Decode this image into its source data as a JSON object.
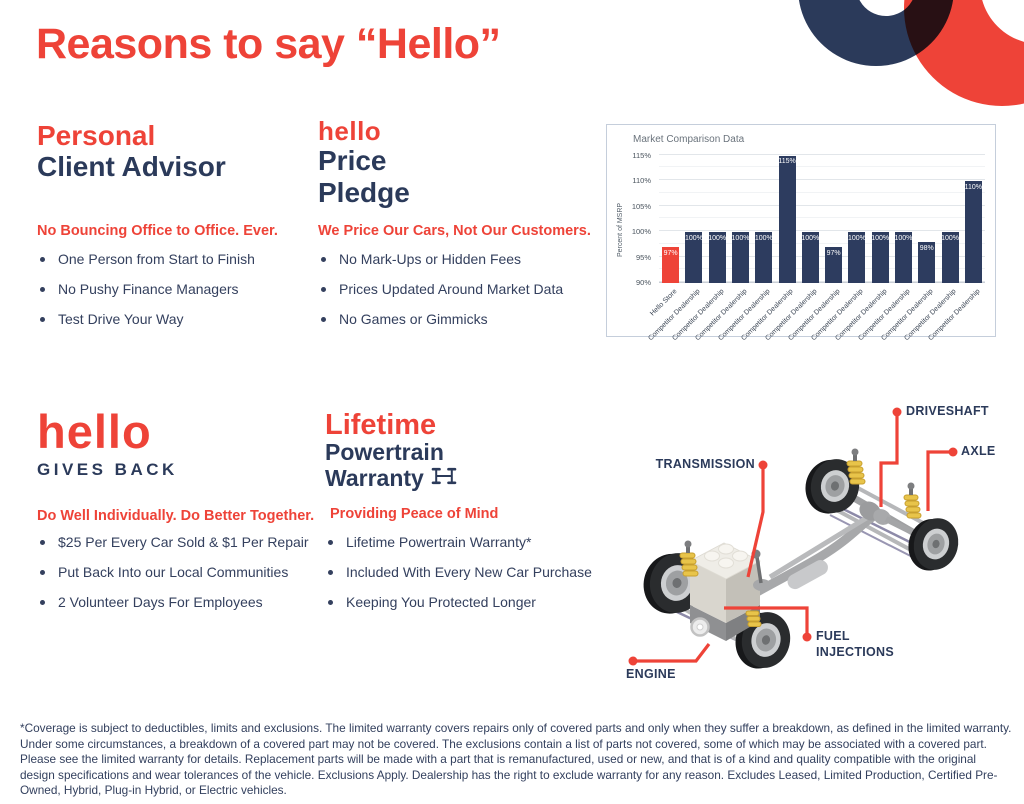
{
  "colors": {
    "accent_red": "#EE4338",
    "navy": "#2B3A5A",
    "bar_navy": "#2D3C5F",
    "grid_major": "#E2E6EA",
    "chart_border": "#C5CEDB"
  },
  "header": {
    "title": "Reasons to say “Hello”"
  },
  "sections": {
    "advisor": {
      "title_accent": "Personal",
      "title_main": "Client Advisor",
      "tagline": "No Bouncing Office to Office. Ever.",
      "bullets": [
        "One Person from Start to Finish",
        "No Pushy Finance Managers",
        "Test Drive Your Way"
      ]
    },
    "price_pledge": {
      "logo": "hello",
      "title_line1": "Price",
      "title_line2": "Pledge",
      "tagline": "We Price Our Cars, Not Our Customers.",
      "bullets": [
        "No Mark-Ups or Hidden Fees",
        "Prices Updated Around Market Data",
        "No Games or Gimmicks"
      ]
    },
    "gives_back": {
      "logo": "hello",
      "subtitle": "GIVES BACK",
      "tagline": "Do Well Individually. Do Better Together.",
      "bullets": [
        "$25 Per Every Car Sold & $1 Per Repair",
        "Put Back Into our Local Communities",
        "2 Volunteer Days For Employees"
      ]
    },
    "warranty": {
      "title_accent": "Lifetime",
      "title_line1": "Powertrain",
      "title_line2": "Warranty",
      "tagline": "Providing Peace of Mind",
      "bullets": [
        "Lifetime Powertrain Warranty*",
        "Included With Every New Car Purchase",
        "Keeping You Protected Longer"
      ]
    }
  },
  "chart_data": {
    "type": "bar",
    "title": "Market Comparison Data",
    "xlabel": "",
    "ylabel": "Percent of MSRP",
    "ylim": [
      90,
      116.5
    ],
    "yticks": [
      90,
      95,
      100,
      105,
      110,
      115
    ],
    "grid": true,
    "legend": false,
    "categories": [
      "Hello Store",
      "Competitor Dealership",
      "Competitor Dealership",
      "Competitor Dealership",
      "Competitor Dealership",
      "Competitor Dealership",
      "Competitor Dealership",
      "Competitor Dealership",
      "Competitor Dealership",
      "Competitor Dealership",
      "Competitor Dealership",
      "Competitor Dealership",
      "Competitor Dealership",
      "Competitor Dealership"
    ],
    "values": [
      97,
      100,
      100,
      100,
      100,
      115,
      100,
      97,
      100,
      100,
      100,
      98,
      100,
      110
    ],
    "highlight_index": 0,
    "bar_color": "#2D3C5F",
    "highlight_color": "#EE4338"
  },
  "diagram": {
    "labels": {
      "driveshaft": "DRIVESHAFT",
      "axle": "AXLE",
      "transmission": "TRANSMISSION",
      "fuel_injections": "FUEL INJECTIONS",
      "engine": "ENGINE"
    }
  },
  "footer": {
    "disclaimer": "*Coverage is subject to deductibles, limits and exclusions. The limited warranty covers repairs only of covered parts and only when they suffer a breakdown, as defined in the limited warranty. Under some circumstances, a breakdown of a covered part may not be covered. The exclusions contain a list of parts not covered, some of which may be associated with a covered part. Please see the limited warranty for details. Replacement parts will be made with a part that is remanufactured, used or new, and that is of a kind and quality compatible with the original design specifications and wear tolerances of the vehicle. Exclusions Apply. Dealership has the right to exclude warranty for any reason. Excludes Leased, Limited Production, Certified Pre-Owned, Hybrid, Plug-in Hybrid, or Electric vehicles."
  }
}
